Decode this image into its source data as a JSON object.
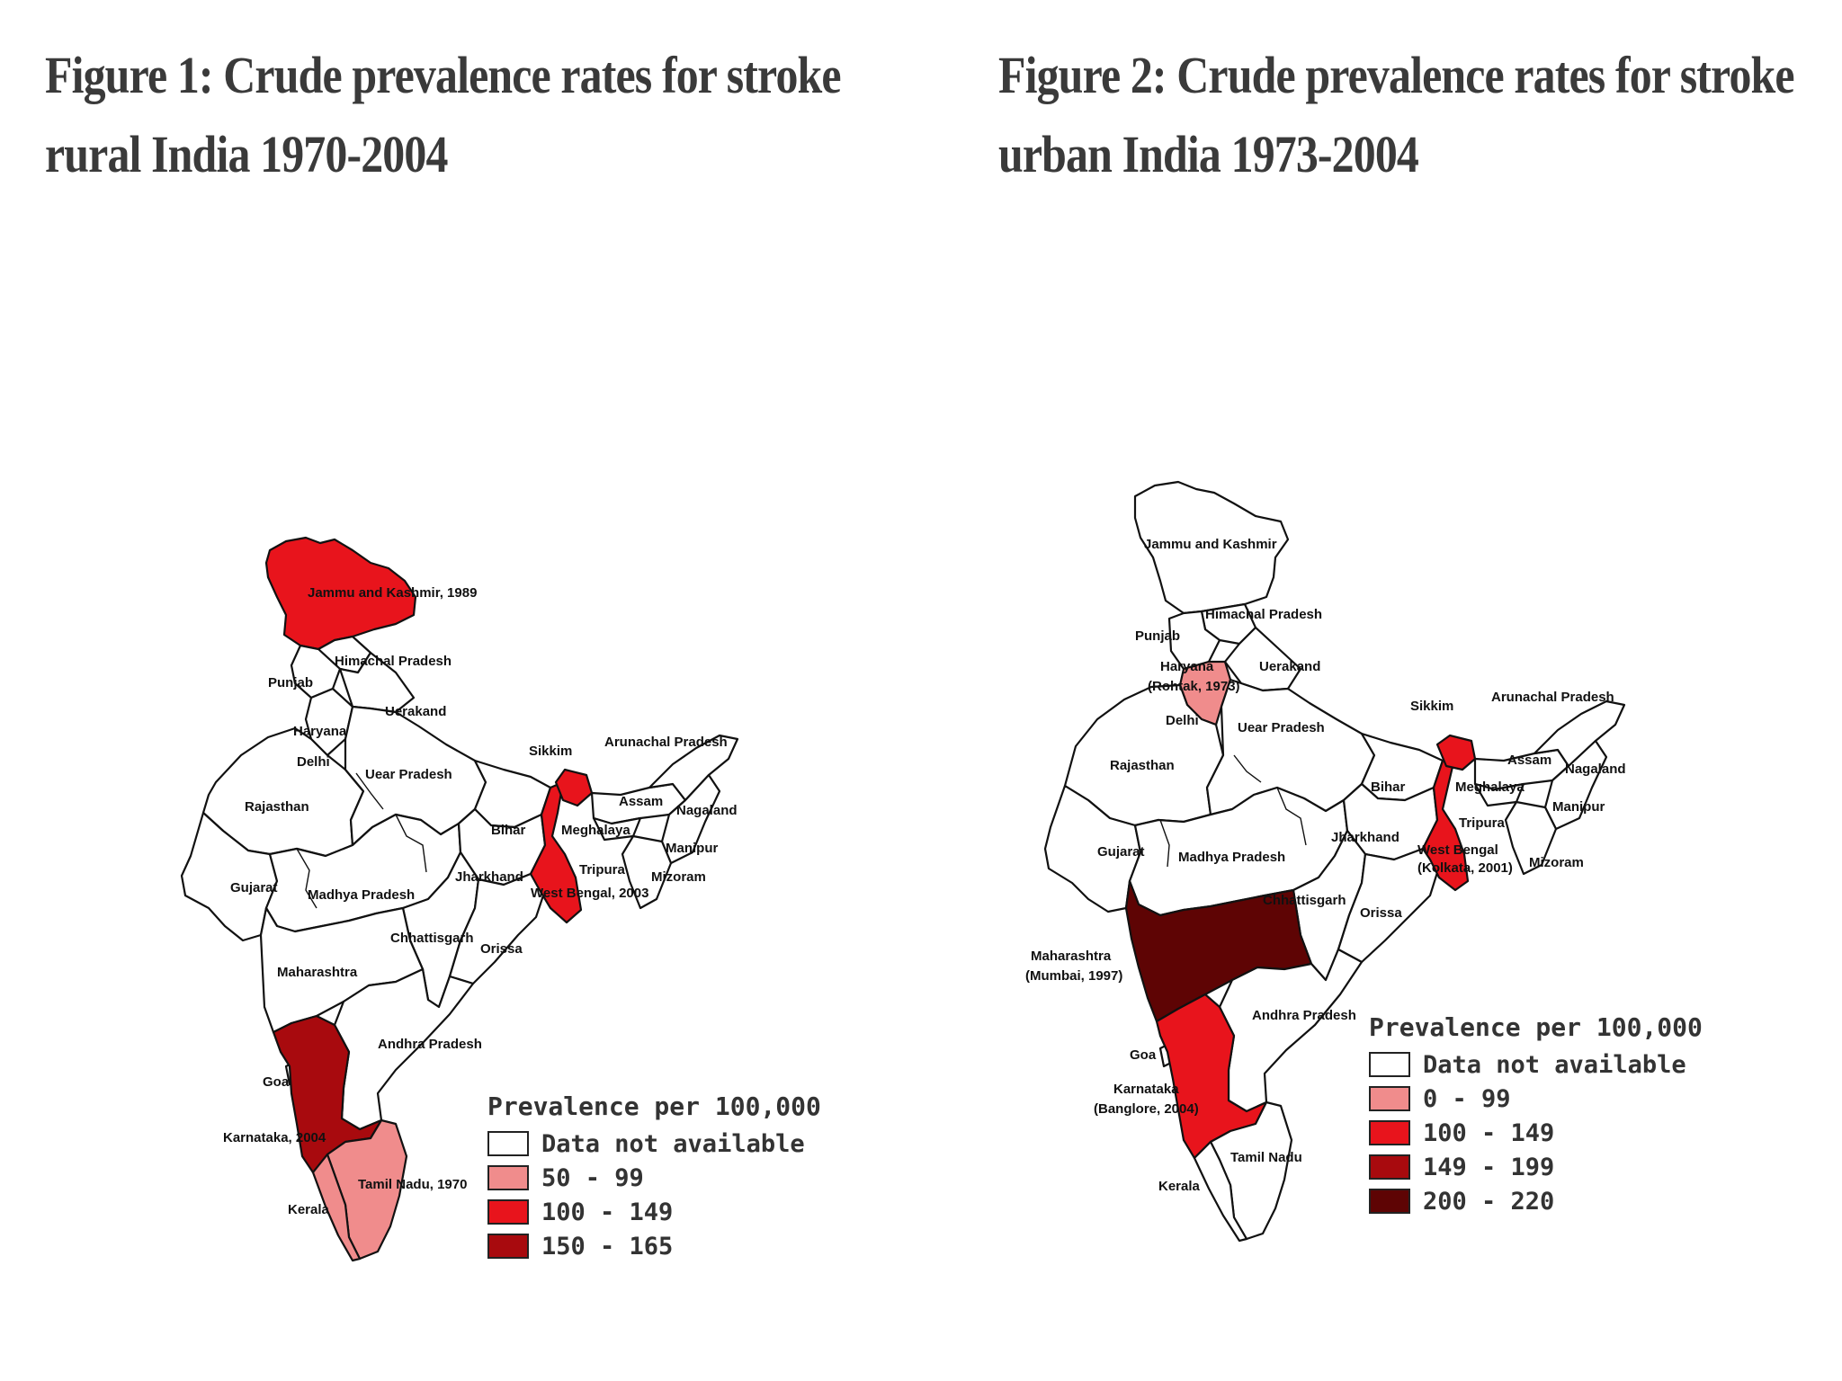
{
  "figures": [
    {
      "title_line1": "Figure 1: Crude prevalence rates for stroke",
      "title_line2": "rural India 1970-2004",
      "state_labels": {
        "jk": "Jammu and Kashmir, 1989",
        "hp": "Himachal Pradesh",
        "punjab": "Punjab",
        "uk": "Uerakand",
        "haryana": "Haryana",
        "delhi": "Delhi",
        "up": "Uear Pradesh",
        "rajasthan": "Rajasthan",
        "sikkim": "Sikkim",
        "arunachal": "Arunachal Pradesh",
        "assam": "Assam",
        "nagaland": "Nagaland",
        "bihar": "Bihar",
        "meghalaya": "Meghalaya",
        "manipur": "Manipur",
        "tripura": "Tripura",
        "mizoram": "Mizoram",
        "gujarat": "Gujarat",
        "mp": "Madhya Pradesh",
        "jharkhand": "Jharkhand",
        "wb": "West Bengal, 2003",
        "chhattisgarh": "Chhattisgarh",
        "orissa": "Orissa",
        "maharashtra": "Maharashtra",
        "ap": "Andhra Pradesh",
        "goa": "Goa",
        "karnataka": "Karnataka, 2004",
        "tn": "Tamil Nadu, 1970",
        "kerala": "Kerala"
      },
      "legend": {
        "title": "Prevalence per 100,000",
        "items": [
          {
            "label": "Data not available",
            "color": "#ffffff"
          },
          {
            "label": "50 - 99",
            "color": "#f08c8c"
          },
          {
            "label": "100 - 149",
            "color": "#e8141c"
          },
          {
            "label": "150 - 165",
            "color": "#a80a0e"
          }
        ]
      }
    },
    {
      "title_line1": "Figure 2: Crude prevalence rates for stroke",
      "title_line2": "urban India 1973-2004",
      "state_labels": {
        "jk": "Jammu and Kashmir",
        "hp": "Himachal Pradesh",
        "punjab": "Punjab",
        "haryana": "Haryana",
        "rohtak": "(Rohtak, 1973)",
        "uk": "Uerakand",
        "delhi": "Delhi",
        "up": "Uear Pradesh",
        "rajasthan": "Rajasthan",
        "sikkim": "Sikkim",
        "arunachal": "Arunachal Pradesh",
        "assam": "Assam",
        "nagaland": "Nagaland",
        "bihar": "Bihar",
        "meghalaya": "Meghalaya",
        "manipur": "Manipur",
        "tripura": "Tripura",
        "gujarat": "Gujarat",
        "mp": "Madhya Pradesh",
        "jharkhand": "Jharkhand",
        "wb": "West Bengal",
        "kolkata": "(Kolkata, 2001)",
        "mizoram": "Mizoram",
        "chhattisgarh": "Chhattisgarh",
        "orissa": "Orissa",
        "maharashtra": "Maharashtra",
        "mumbai": "(Mumbai, 1997)",
        "ap": "Andhra Pradesh",
        "goa": "Goa",
        "karnataka": "Karnataka",
        "bangalore": "(Banglore, 2004)",
        "tn": "Tamil Nadu",
        "kerala": "Kerala"
      },
      "legend": {
        "title": "Prevalence per 100,000",
        "items": [
          {
            "label": "Data not available",
            "color": "#ffffff"
          },
          {
            "label": "0 - 99",
            "color": "#f08c8c"
          },
          {
            "label": "100 - 149",
            "color": "#e8141c"
          },
          {
            "label": "149 - 199",
            "color": "#a80a0e"
          },
          {
            "label": "200 - 220",
            "color": "#5e0404"
          }
        ]
      }
    }
  ]
}
